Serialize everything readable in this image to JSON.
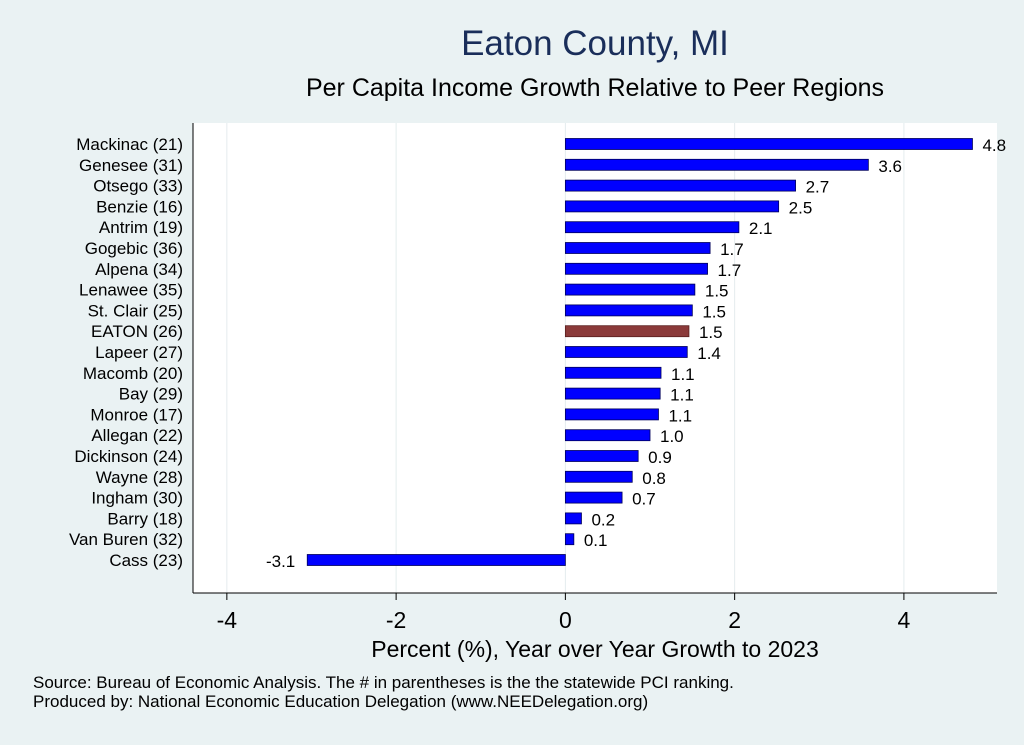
{
  "chart_data": {
    "type": "bar",
    "orientation": "horizontal",
    "title": "Eaton County, MI",
    "subtitle": "Per Capita Income Growth Relative to Peer Regions",
    "xlabel": "Percent (%), Year over Year Growth to 2023",
    "ylabel": "",
    "xlim": [
      -4.4,
      5.1
    ],
    "xticks": [
      -4,
      -2,
      0,
      2,
      4
    ],
    "xtick_labels": [
      "-4",
      "-2",
      "0",
      "2",
      "4"
    ],
    "grid": true,
    "categories": [
      "Mackinac (21)",
      "Genesee (31)",
      "Otsego (33)",
      "Benzie (16)",
      "Antrim (19)",
      "Gogebic (36)",
      "Alpena (34)",
      "Lenawee (35)",
      "St. Clair (25)",
      "EATON (26)",
      "Lapeer (27)",
      "Macomb (20)",
      "Bay (29)",
      "Monroe (17)",
      "Allegan (22)",
      "Dickinson (24)",
      "Wayne (28)",
      "Ingham (30)",
      "Barry (18)",
      "Van Buren (32)",
      "Cass (23)"
    ],
    "values": [
      4.81,
      3.58,
      2.72,
      2.52,
      2.05,
      1.71,
      1.68,
      1.53,
      1.5,
      1.46,
      1.44,
      1.13,
      1.12,
      1.1,
      1.0,
      0.86,
      0.79,
      0.67,
      0.19,
      0.1,
      -3.05
    ],
    "value_labels": [
      "4.8",
      "3.6",
      "2.7",
      "2.5",
      "2.1",
      "1.7",
      "1.7",
      "1.5",
      "1.5",
      "1.5",
      "1.4",
      "1.1",
      "1.1",
      "1.1",
      "1.0",
      "0.9",
      "0.8",
      "0.7",
      "0.2",
      "0.1",
      "-3.1"
    ],
    "highlight": "EATON (26)",
    "colors": {
      "bar": "#0000ff",
      "highlight": "#8b3a3a",
      "plot_bg": "#ffffff",
      "grid": "#e4ecee"
    }
  },
  "notes": {
    "source": "Source: Bureau of Economic Analysis. The # in parentheses is the the statewide PCI ranking.",
    "produced": "Produced by: National Economic Education Delegation (www.NEEDelegation.org)"
  }
}
